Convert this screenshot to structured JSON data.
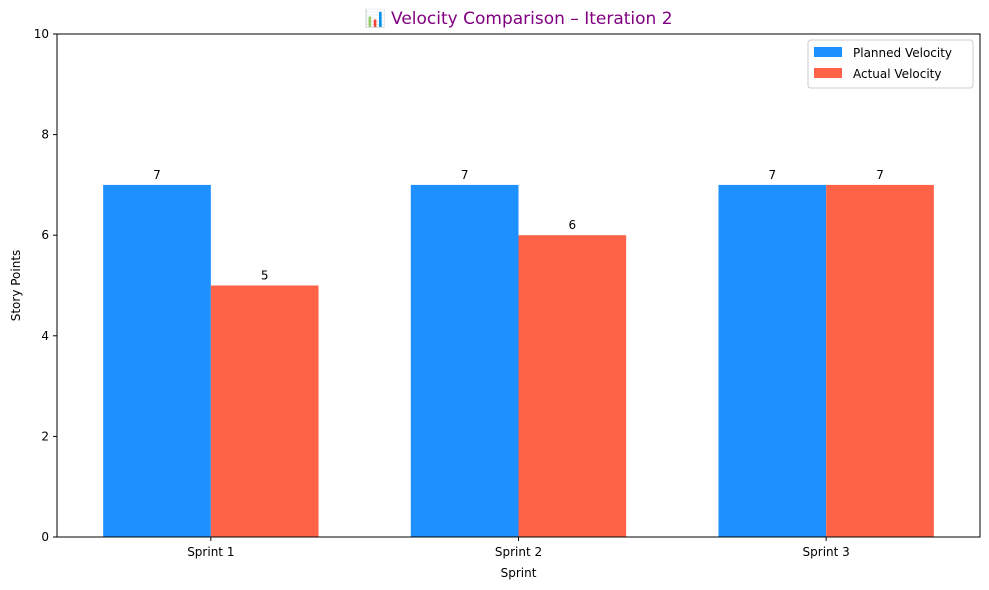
{
  "chart_data": {
    "type": "bar",
    "title": "📊 Velocity Comparison – Iteration 2",
    "xlabel": "Sprint",
    "ylabel": "Story Points",
    "categories": [
      "Sprint 1",
      "Sprint 2",
      "Sprint 3"
    ],
    "series": [
      {
        "name": "Planned Velocity",
        "values": [
          7,
          7,
          7
        ],
        "color": "#1E90FF"
      },
      {
        "name": "Actual Velocity",
        "values": [
          5,
          6,
          7
        ],
        "color": "#FF6347"
      }
    ],
    "ylim": [
      0,
      10
    ],
    "yticks": [
      0,
      2,
      4,
      6,
      8,
      10
    ],
    "grid": false,
    "legend_position": "top-right",
    "title_color": "#800080"
  }
}
